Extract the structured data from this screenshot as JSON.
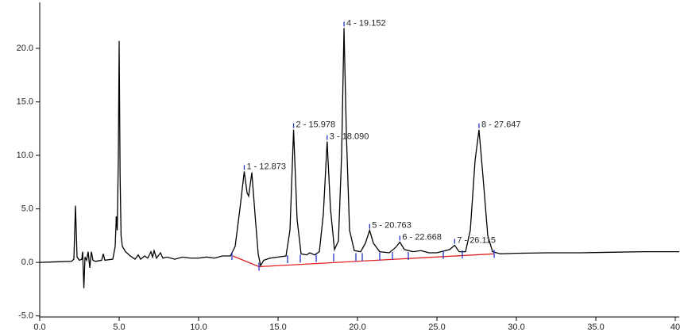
{
  "chart_data": {
    "type": "line",
    "xlim": [
      0,
      40.25
    ],
    "ylim": [
      -5.1,
      24.3
    ],
    "xticks": [
      {
        "value": 0,
        "label": "0.0"
      },
      {
        "value": 5,
        "label": "5.0"
      },
      {
        "value": 10,
        "label": "10.0"
      },
      {
        "value": 15,
        "label": "15.0"
      },
      {
        "value": 20,
        "label": "20.0"
      },
      {
        "value": 25,
        "label": "25.0"
      },
      {
        "value": 30,
        "label": "30.0"
      },
      {
        "value": 35,
        "label": "35.0"
      },
      {
        "value": 40,
        "label": "40"
      }
    ],
    "yticks": [
      {
        "value": -5,
        "label": "-5.0"
      },
      {
        "value": 0,
        "label": "0.0"
      },
      {
        "value": 5,
        "label": "5.0"
      },
      {
        "value": 10,
        "label": "10.0"
      },
      {
        "value": 15,
        "label": "15.0"
      },
      {
        "value": 20,
        "label": "20.0"
      }
    ],
    "series": [
      {
        "color": "#000000",
        "x": [
          0,
          1,
          2,
          2.15,
          2.25,
          2.35,
          2.5,
          2.65,
          2.7,
          2.78,
          2.85,
          2.95,
          3.05,
          3.15,
          3.25,
          3.35,
          3.5,
          3.9,
          4.0,
          4.1,
          4.6,
          4.75,
          4.82,
          4.88,
          4.95,
          5.0,
          5.06,
          5.12,
          5.2,
          5.4,
          5.7,
          6.0,
          6.2,
          6.35,
          6.6,
          6.8,
          7.0,
          7.1,
          7.2,
          7.35,
          7.6,
          7.75,
          8.0,
          8.5,
          9.0,
          9.5,
          10.0,
          10.5,
          11.0,
          11.5,
          12.0,
          12.3,
          12.6,
          12.873,
          13.05,
          13.15,
          13.35,
          13.55,
          13.75,
          13.9,
          14.1,
          14.5,
          15.0,
          15.5,
          15.75,
          15.978,
          16.2,
          16.45,
          16.8,
          17.0,
          17.3,
          17.6,
          17.85,
          18.09,
          18.3,
          18.55,
          18.8,
          19.0,
          19.152,
          19.3,
          19.5,
          19.8,
          20.2,
          20.5,
          20.763,
          21.0,
          21.4,
          22.0,
          22.4,
          22.668,
          22.95,
          23.5,
          24.0,
          24.5,
          25.0,
          25.8,
          26.115,
          26.4,
          26.8,
          27.1,
          27.4,
          27.647,
          27.9,
          28.2,
          28.5,
          29.0,
          30,
          32,
          34,
          36,
          38,
          40,
          40.25
        ],
        "values": [
          0,
          0.05,
          0.1,
          0.3,
          5.3,
          0.5,
          0.2,
          0.3,
          1.0,
          -2.4,
          0.5,
          0.2,
          1.0,
          -0.5,
          1.0,
          0.2,
          0.1,
          0.2,
          0.8,
          0.2,
          0.3,
          1.5,
          4.3,
          3.0,
          10,
          20.7,
          8,
          2.5,
          1.5,
          1.0,
          0.6,
          0.3,
          0.7,
          0.3,
          0.6,
          0.4,
          1.0,
          0.5,
          1.1,
          0.4,
          0.9,
          0.4,
          0.5,
          0.3,
          0.5,
          0.4,
          0.4,
          0.5,
          0.4,
          0.6,
          0.6,
          1.5,
          5.0,
          8.5,
          6.5,
          6.2,
          8.4,
          4.5,
          0.8,
          -0.3,
          0.2,
          0.4,
          0.5,
          0.6,
          3.0,
          12.4,
          4.0,
          0.8,
          0.7,
          0.9,
          0.7,
          1.0,
          4.5,
          11.3,
          5.0,
          1.2,
          2.0,
          10.0,
          21.9,
          12.0,
          3.0,
          1.1,
          1.0,
          1.8,
          3.0,
          1.8,
          1.0,
          0.9,
          1.4,
          1.9,
          1.2,
          1.0,
          1.1,
          0.9,
          0.9,
          1.2,
          1.6,
          1.0,
          1.0,
          3.0,
          9.5,
          12.4,
          8.0,
          2.5,
          1.0,
          0.8,
          0.85,
          0.9,
          0.9,
          0.95,
          1.0,
          1.0,
          1.0
        ]
      },
      {
        "color": "#e02020",
        "x": [
          12.15,
          13.8,
          28.6
        ],
        "values": [
          0.6,
          -0.4,
          0.8
        ]
      }
    ],
    "integration_marks": {
      "color": "#2233cc",
      "x": [
        12.1,
        13.8,
        15.6,
        16.4,
        17.4,
        18.5,
        19.9,
        20.3,
        21.4,
        22.2,
        23.2,
        25.4,
        26.6,
        28.6
      ],
      "y": [
        0.6,
        -0.4,
        0.3,
        0.35,
        0.4,
        0.45,
        0.5,
        0.5,
        0.55,
        0.6,
        0.6,
        0.7,
        0.75,
        0.8
      ]
    },
    "annotations": [
      {
        "text": "1 - 12.873",
        "x": 12.873,
        "y": 8.5
      },
      {
        "text": "2 - 15.978",
        "x": 15.978,
        "y": 12.4
      },
      {
        "text": "3 - 18.090",
        "x": 18.09,
        "y": 11.3
      },
      {
        "text": "4 - 19.152",
        "x": 19.152,
        "y": 21.9
      },
      {
        "text": "5 - 20.763",
        "x": 20.763,
        "y": 3.0
      },
      {
        "text": "6 - 22.668",
        "x": 22.668,
        "y": 1.9
      },
      {
        "text": "7 - 26.115",
        "x": 26.115,
        "y": 1.6
      },
      {
        "text": "8 - 27.647",
        "x": 27.647,
        "y": 12.4
      }
    ]
  }
}
